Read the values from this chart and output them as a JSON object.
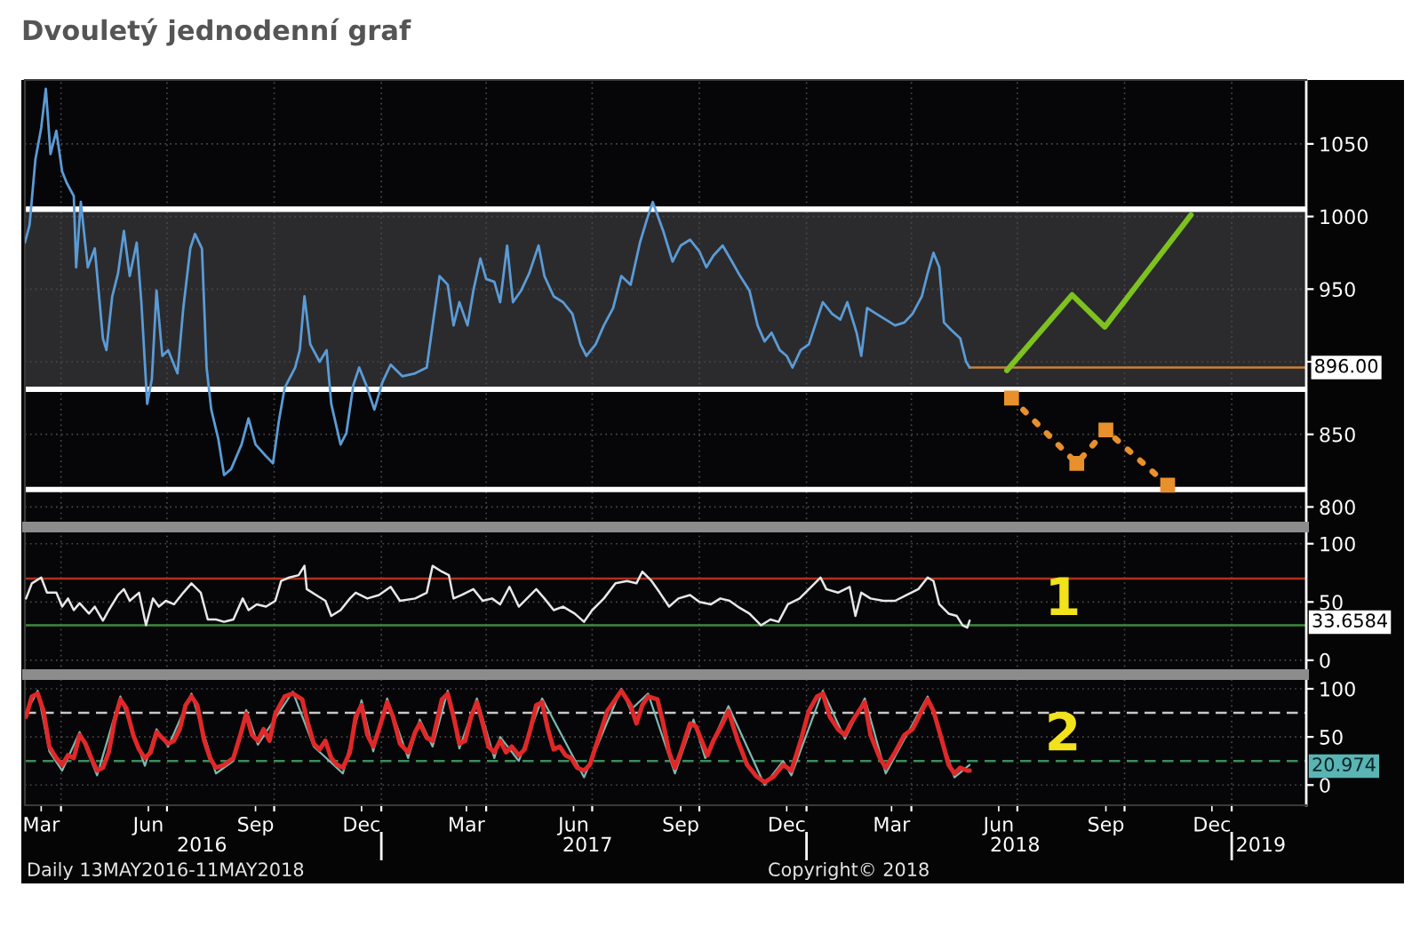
{
  "chart_data": [
    {
      "type": "line",
      "title": "Dvouletý jednodenní graf",
      "x": [
        "2016-03-01",
        "2016-03-05",
        "2016-03-10",
        "2016-03-15",
        "2016-03-19",
        "2016-03-23",
        "2016-03-28",
        "2016-04-02",
        "2016-04-06",
        "2016-04-12",
        "2016-04-14",
        "2016-04-18",
        "2016-04-24",
        "2016-04-30",
        "2016-05-07",
        "2016-05-10",
        "2016-05-15",
        "2016-05-20",
        "2016-05-25",
        "2016-05-30",
        "2016-06-05",
        "2016-06-09",
        "2016-06-14",
        "2016-06-18",
        "2016-06-22",
        "2016-06-27",
        "2016-07-02",
        "2016-07-10",
        "2016-07-15",
        "2016-07-21",
        "2016-07-25",
        "2016-07-31",
        "2016-08-04",
        "2016-08-08",
        "2016-08-14",
        "2016-08-19",
        "2016-08-25",
        "2016-09-03",
        "2016-09-09",
        "2016-09-15",
        "2016-09-24",
        "2016-09-30",
        "2016-10-05",
        "2016-10-10",
        "2016-10-19",
        "2016-10-23",
        "2016-10-27",
        "2016-11-01",
        "2016-11-09",
        "2016-11-15",
        "2016-11-19",
        "2016-11-27",
        "2016-12-02",
        "2016-12-08",
        "2016-12-13",
        "2016-12-19",
        "2016-12-26",
        "2017-01-02",
        "2017-01-09",
        "2017-01-19",
        "2017-01-30",
        "2017-02-09",
        "2017-02-14",
        "2017-02-20",
        "2017-02-27",
        "2017-03-04",
        "2017-03-09",
        "2017-03-16",
        "2017-03-21",
        "2017-03-27",
        "2017-04-01",
        "2017-04-08",
        "2017-04-13",
        "2017-04-19",
        "2017-04-24",
        "2017-05-01",
        "2017-05-08",
        "2017-05-16",
        "2017-05-21",
        "2017-05-29",
        "2017-06-06",
        "2017-06-14",
        "2017-06-21",
        "2017-06-26",
        "2017-07-04",
        "2017-07-11",
        "2017-07-19",
        "2017-07-26",
        "2017-08-03",
        "2017-08-11",
        "2017-08-17",
        "2017-08-22",
        "2017-08-31",
        "2017-09-08",
        "2017-09-15",
        "2017-09-23",
        "2017-10-01",
        "2017-10-07",
        "2017-10-13",
        "2017-10-21",
        "2017-10-29",
        "2017-11-05",
        "2017-11-13",
        "2017-11-20",
        "2017-11-26",
        "2017-12-02",
        "2017-12-09",
        "2017-12-15",
        "2017-12-20",
        "2017-12-27",
        "2018-01-03",
        "2018-01-10",
        "2018-01-15",
        "2018-01-23",
        "2018-01-30",
        "2018-02-05",
        "2018-02-13",
        "2018-02-17",
        "2018-02-22",
        "2018-03-02",
        "2018-03-10",
        "2018-03-18",
        "2018-03-26",
        "2018-04-02",
        "2018-04-10",
        "2018-04-15",
        "2018-04-20",
        "2018-04-25",
        "2018-04-29",
        "2018-05-05",
        "2018-05-13",
        "2018-05-18",
        "2018-05-21"
      ],
      "series": [
        {
          "color": "#5b9bd5",
          "values": [
            982,
            994,
            1039,
            1061,
            1088,
            1043,
            1059,
            1031,
            1023,
            1014,
            965,
            1010,
            965,
            978,
            916,
            908,
            945,
            961,
            990,
            959,
            982,
            941,
            871,
            888,
            949,
            904,
            908,
            892,
            937,
            978,
            988,
            978,
            896,
            867,
            847,
            822,
            826,
            843,
            861,
            843,
            835,
            830,
            859,
            882,
            896,
            908,
            945,
            912,
            900,
            908,
            871,
            843,
            851,
            884,
            896,
            884,
            867,
            886,
            898,
            890,
            892,
            896,
            925,
            959,
            953,
            925,
            941,
            925,
            949,
            971,
            957,
            955,
            941,
            980,
            941,
            949,
            961,
            980,
            959,
            945,
            941,
            933,
            912,
            904,
            912,
            925,
            937,
            959,
            953,
            982,
            998,
            1010,
            990,
            969,
            980,
            984,
            976,
            965,
            973,
            980,
            969,
            959,
            949,
            925,
            914,
            920,
            908,
            904,
            896,
            908,
            912,
            929,
            941,
            933,
            929,
            941,
            920,
            904,
            937,
            933,
            929,
            925,
            927,
            933,
            945,
            961,
            975,
            965,
            927,
            922,
            916,
            900,
            896
          ]
        },
        {
          "type": "line",
          "color": "#7dc21e",
          "x": [
            "2018-06-22",
            "2018-08-17",
            "2018-09-14",
            "2018-11-27"
          ],
          "values": [
            894,
            946,
            924,
            1001
          ]
        },
        {
          "type": "line",
          "color": "#e8902c",
          "x": [
            "2018-06-26",
            "2018-08-21",
            "2018-09-15",
            "2018-11-07"
          ],
          "values": [
            875,
            830,
            853,
            815
          ],
          "marker": "square",
          "line_style": "dotted"
        }
      ],
      "xlim": [
        "2016-03-01",
        "2019-03-06"
      ],
      "xticks": [
        {
          "value": "2016-04-01",
          "label": null
        },
        {
          "value": "2016-07-01",
          "label": null
        },
        {
          "value": "2016-10-01",
          "label": null
        },
        {
          "value": "2017-01-01",
          "label": null
        },
        {
          "value": "2017-04-01",
          "label": null
        },
        {
          "value": "2017-07-01",
          "label": null
        },
        {
          "value": "2017-10-01",
          "label": null
        },
        {
          "value": "2018-01-01",
          "label": null
        },
        {
          "value": "2018-04-01",
          "label": null
        },
        {
          "value": "2018-07-01",
          "label": null
        },
        {
          "value": "2018-10-01",
          "label": null
        },
        {
          "value": "2019-01-01",
          "label": null
        }
      ],
      "ylim": [
        788,
        1094
      ],
      "yticks": [
        800,
        850,
        {
          "value": 900,
          "label": null
        },
        950,
        1000,
        1050
      ],
      "grid": true,
      "tick_labels": "y",
      "bands": [
        {
          "axis": "y",
          "from": 881,
          "to": 1005,
          "color": "#2b2b2e"
        }
      ],
      "ref_lines": [
        {
          "axis": "y",
          "value": 1005,
          "color": "#ffffff"
        },
        {
          "axis": "y",
          "value": 881,
          "color": "#ffffff"
        },
        {
          "axis": "y",
          "value": 812,
          "color": "#ffffff"
        }
      ],
      "annotations": [
        {
          "text": "896.00",
          "x": "2018-05-21",
          "y": 896
        }
      ]
    },
    {
      "type": "line",
      "x": [
        "2016-03-02",
        "2016-03-07",
        "2016-03-15",
        "2016-03-20",
        "2016-03-28",
        "2016-04-02",
        "2016-04-07",
        "2016-04-12",
        "2016-04-17",
        "2016-04-25",
        "2016-04-30",
        "2016-05-07",
        "2016-05-12",
        "2016-05-20",
        "2016-05-25",
        "2016-05-30",
        "2016-06-07",
        "2016-06-13",
        "2016-06-19",
        "2016-06-24",
        "2016-06-30",
        "2016-07-07",
        "2016-07-15",
        "2016-07-22",
        "2016-07-30",
        "2016-08-05",
        "2016-08-12",
        "2016-08-19",
        "2016-08-27",
        "2016-09-04",
        "2016-09-09",
        "2016-09-16",
        "2016-09-24",
        "2016-10-02",
        "2016-10-07",
        "2016-10-14",
        "2016-10-22",
        "2016-10-27",
        "2016-10-29",
        "2016-11-06",
        "2016-11-14",
        "2016-11-19",
        "2016-11-27",
        "2016-12-05",
        "2016-12-10",
        "2016-12-20",
        "2016-12-30",
        "2017-01-09",
        "2017-01-17",
        "2017-01-30",
        "2017-02-09",
        "2017-02-14",
        "2017-02-22",
        "2017-02-28",
        "2017-03-04",
        "2017-03-11",
        "2017-03-21",
        "2017-03-29",
        "2017-04-06",
        "2017-04-13",
        "2017-04-21",
        "2017-04-29",
        "2017-05-06",
        "2017-05-14",
        "2017-05-21",
        "2017-05-29",
        "2017-06-06",
        "2017-06-16",
        "2017-06-24",
        "2017-07-01",
        "2017-07-11",
        "2017-07-21",
        "2017-07-31",
        "2017-08-08",
        "2017-08-13",
        "2017-08-21",
        "2017-08-28",
        "2017-09-05",
        "2017-09-13",
        "2017-09-23",
        "2017-10-01",
        "2017-10-11",
        "2017-10-19",
        "2017-10-27",
        "2017-11-03",
        "2017-11-13",
        "2017-11-23",
        "2017-12-01",
        "2017-12-08",
        "2017-12-16",
        "2017-12-26",
        "2018-01-05",
        "2018-01-13",
        "2018-01-18",
        "2018-01-28",
        "2018-02-07",
        "2018-02-12",
        "2018-02-17",
        "2018-02-25",
        "2018-03-08",
        "2018-03-18",
        "2018-03-28",
        "2018-04-07",
        "2018-04-15",
        "2018-04-20",
        "2018-04-25",
        "2018-05-03",
        "2018-05-10",
        "2018-05-15",
        "2018-05-19",
        "2018-05-21"
      ],
      "series": [
        {
          "color": "#e8e8e8",
          "values": [
            53,
            66,
            71,
            58,
            58,
            46,
            53,
            43,
            49,
            40,
            46,
            34,
            43,
            56,
            61,
            51,
            58,
            30,
            53,
            46,
            51,
            48,
            58,
            66,
            58,
            35,
            35,
            33,
            35,
            53,
            43,
            48,
            46,
            51,
            68,
            71,
            73,
            81,
            61,
            56,
            51,
            38,
            43,
            53,
            58,
            53,
            56,
            63,
            51,
            53,
            58,
            81,
            76,
            73,
            53,
            56,
            61,
            51,
            53,
            48,
            63,
            46,
            53,
            61,
            53,
            43,
            46,
            40,
            33,
            43,
            53,
            66,
            68,
            66,
            76,
            68,
            58,
            46,
            53,
            56,
            50,
            48,
            53,
            51,
            46,
            40,
            30,
            35,
            33,
            48,
            53,
            63,
            71,
            61,
            58,
            63,
            38,
            58,
            53,
            51,
            51,
            56,
            61,
            71,
            68,
            48,
            40,
            38,
            30,
            28,
            34
          ]
        }
      ],
      "xlim": [
        "2016-03-01",
        "2019-03-06"
      ],
      "xticks": [
        {
          "value": "2016-04-01",
          "label": null
        },
        {
          "value": "2016-07-01",
          "label": null
        },
        {
          "value": "2016-10-01",
          "label": null
        },
        {
          "value": "2017-01-01",
          "label": null
        },
        {
          "value": "2017-04-01",
          "label": null
        },
        {
          "value": "2017-07-01",
          "label": null
        },
        {
          "value": "2017-10-01",
          "label": null
        },
        {
          "value": "2018-01-01",
          "label": null
        },
        {
          "value": "2018-04-01",
          "label": null
        },
        {
          "value": "2018-07-01",
          "label": null
        },
        {
          "value": "2018-10-01",
          "label": null
        },
        {
          "value": "2019-01-01",
          "label": null
        }
      ],
      "ylim": [
        -10,
        112
      ],
      "yticks": [
        0,
        50,
        100
      ],
      "grid": true,
      "tick_labels": "y",
      "ref_lines": [
        {
          "axis": "y",
          "value": 70,
          "color": "#b0301e"
        },
        {
          "axis": "y",
          "value": 30,
          "color": "#3c8c3c"
        }
      ],
      "annotations": [
        "1",
        "33.6584"
      ]
    },
    {
      "type": "line",
      "x": [
        "2016-03-02",
        "2016-03-07",
        "2016-03-12",
        "2016-03-17",
        "2016-03-22",
        "2016-03-28",
        "2016-04-02",
        "2016-04-07",
        "2016-04-12",
        "2016-04-17",
        "2016-04-22",
        "2016-04-27",
        "2016-05-02",
        "2016-05-07",
        "2016-05-12",
        "2016-05-17",
        "2016-05-22",
        "2016-05-27",
        "2016-06-02",
        "2016-06-07",
        "2016-06-12",
        "2016-06-17",
        "2016-06-22",
        "2016-06-27",
        "2016-07-02",
        "2016-07-07",
        "2016-07-12",
        "2016-07-17",
        "2016-07-22",
        "2016-07-27",
        "2016-08-02",
        "2016-08-07",
        "2016-08-12",
        "2016-08-19",
        "2016-08-27",
        "2016-09-02",
        "2016-09-07",
        "2016-09-12",
        "2016-09-17",
        "2016-09-22",
        "2016-09-27",
        "2016-10-02",
        "2016-10-10",
        "2016-10-17",
        "2016-10-25",
        "2016-10-30",
        "2016-11-04",
        "2016-11-09",
        "2016-11-14",
        "2016-11-19",
        "2016-11-24",
        "2016-11-29",
        "2016-12-05",
        "2016-12-10",
        "2016-12-15",
        "2016-12-20",
        "2016-12-25",
        "2016-12-30",
        "2017-01-06",
        "2017-01-11",
        "2017-01-17",
        "2017-01-24",
        "2017-01-30",
        "2017-02-03",
        "2017-02-09",
        "2017-02-14",
        "2017-02-22",
        "2017-02-27",
        "2017-03-04",
        "2017-03-09",
        "2017-03-14",
        "2017-03-19",
        "2017-03-24",
        "2017-03-29",
        "2017-04-03",
        "2017-04-08",
        "2017-04-13",
        "2017-04-18",
        "2017-04-23",
        "2017-04-29",
        "2017-05-04",
        "2017-05-09",
        "2017-05-14",
        "2017-05-19",
        "2017-05-24",
        "2017-05-29",
        "2017-06-03",
        "2017-06-08",
        "2017-06-13",
        "2017-06-18",
        "2017-06-24",
        "2017-06-29",
        "2017-07-04",
        "2017-07-09",
        "2017-07-14",
        "2017-07-21",
        "2017-07-26",
        "2017-08-03",
        "2017-08-08",
        "2017-08-13",
        "2017-08-18",
        "2017-08-26",
        "2017-08-31",
        "2017-09-05",
        "2017-09-10",
        "2017-09-15",
        "2017-09-23",
        "2017-09-28",
        "2017-10-03",
        "2017-10-08",
        "2017-10-13",
        "2017-10-21",
        "2017-10-26",
        "2017-11-03",
        "2017-11-11",
        "2017-11-19",
        "2017-11-26",
        "2017-12-04",
        "2017-12-12",
        "2017-12-19",
        "2017-12-27",
        "2018-01-03",
        "2018-01-10",
        "2018-01-15",
        "2018-01-21",
        "2018-01-28",
        "2018-02-03",
        "2018-02-08",
        "2018-02-15",
        "2018-02-20",
        "2018-02-25",
        "2018-03-05",
        "2018-03-10",
        "2018-03-18",
        "2018-03-26",
        "2018-04-02",
        "2018-04-10",
        "2018-04-15",
        "2018-04-20",
        "2018-04-28",
        "2018-05-03",
        "2018-05-08",
        "2018-05-13",
        "2018-05-19",
        "2018-05-21"
      ],
      "series": [
        {
          "color": "#7fb8b0",
          "x": [
            "2016-03-02",
            "2016-03-12",
            "2016-03-22",
            "2016-04-02",
            "2016-04-17",
            "2016-05-02",
            "2016-05-22",
            "2016-06-12",
            "2016-06-22",
            "2016-07-02",
            "2016-07-22",
            "2016-08-12",
            "2016-08-27",
            "2016-09-07",
            "2016-09-17",
            "2016-10-17",
            "2016-11-04",
            "2016-11-29",
            "2016-12-15",
            "2016-12-25",
            "2017-01-06",
            "2017-01-24",
            "2017-02-03",
            "2017-02-14",
            "2017-02-27",
            "2017-03-09",
            "2017-03-24",
            "2017-04-08",
            "2017-04-13",
            "2017-04-29",
            "2017-05-19",
            "2017-06-24",
            "2017-07-26",
            "2017-08-03",
            "2017-08-18",
            "2017-09-10",
            "2017-09-26",
            "2017-10-06",
            "2017-10-26",
            "2017-11-26",
            "2017-12-12",
            "2017-12-19",
            "2018-01-15",
            "2018-02-03",
            "2018-02-20",
            "2018-03-10",
            "2018-04-15",
            "2018-05-08",
            "2018-05-21"
          ],
          "values": [
            75,
            98,
            35,
            15,
            55,
            10,
            92,
            20,
            58,
            40,
            95,
            12,
            25,
            78,
            42,
            97,
            40,
            12,
            88,
            35,
            90,
            28,
            68,
            40,
            98,
            38,
            90,
            28,
            50,
            25,
            90,
            8,
            100,
            78,
            95,
            12,
            68,
            28,
            82,
            0,
            25,
            10,
            98,
            48,
            90,
            12,
            92,
            8,
            21
          ]
        },
        {
          "color": "#e02828",
          "values": [
            71,
            92,
            95,
            77,
            40,
            28,
            21,
            31,
            28,
            52,
            43,
            28,
            15,
            18,
            34,
            67,
            89,
            80,
            52,
            37,
            28,
            34,
            55,
            49,
            43,
            46,
            58,
            83,
            92,
            83,
            46,
            28,
            18,
            21,
            28,
            52,
            74,
            52,
            46,
            58,
            46,
            74,
            92,
            95,
            89,
            64,
            43,
            37,
            46,
            28,
            21,
            18,
            34,
            71,
            83,
            52,
            40,
            58,
            86,
            71,
            43,
            34,
            55,
            64,
            49,
            46,
            89,
            95,
            71,
            43,
            46,
            71,
            86,
            64,
            40,
            34,
            46,
            34,
            40,
            31,
            37,
            58,
            83,
            86,
            58,
            37,
            40,
            31,
            28,
            18,
            15,
            21,
            40,
            58,
            77,
            89,
            98,
            83,
            64,
            83,
            92,
            89,
            64,
            34,
            18,
            34,
            64,
            61,
            46,
            31,
            46,
            64,
            77,
            46,
            21,
            9,
            3,
            9,
            21,
            15,
            46,
            77,
            92,
            95,
            71,
            58,
            52,
            64,
            77,
            86,
            52,
            28,
            18,
            34,
            52,
            58,
            77,
            89,
            77,
            43,
            21,
            12,
            18,
            15,
            15
          ]
        }
      ],
      "xlim": [
        "2016-03-01",
        "2019-03-06"
      ],
      "xticks": [
        {
          "value": "2016-03-15",
          "label": "Mar"
        },
        {
          "value": "2016-04-01",
          "label": null
        },
        {
          "value": "2016-06-15",
          "label": "Jun"
        },
        {
          "value": "2016-07-01",
          "label": null
        },
        {
          "value": "2016-09-15",
          "label": "Sep"
        },
        {
          "value": "2016-10-01",
          "label": null
        },
        {
          "value": "2016-12-15",
          "label": "Dec"
        },
        {
          "value": "2017-01-01",
          "label": null
        },
        {
          "value": "2017-03-15",
          "label": "Mar"
        },
        {
          "value": "2017-04-01",
          "label": null
        },
        {
          "value": "2017-06-15",
          "label": "Jun"
        },
        {
          "value": "2017-07-01",
          "label": null
        },
        {
          "value": "2017-09-15",
          "label": "Sep"
        },
        {
          "value": "2017-10-01",
          "label": null
        },
        {
          "value": "2017-12-15",
          "label": "Dec"
        },
        {
          "value": "2018-01-01",
          "label": null
        },
        {
          "value": "2018-03-15",
          "label": "Mar"
        },
        {
          "value": "2018-04-01",
          "label": null
        },
        {
          "value": "2018-06-15",
          "label": "Jun"
        },
        {
          "value": "2018-07-01",
          "label": null
        },
        {
          "value": "2018-09-15",
          "label": "Sep"
        },
        {
          "value": "2018-10-01",
          "label": null
        },
        {
          "value": "2018-12-15",
          "label": "Dec"
        },
        {
          "value": "2019-01-01",
          "label": null
        }
      ],
      "x2lim": [
        "2016-03-01",
        "2019-03-06"
      ],
      "x2ticks": [
        {
          "value": "2016-07-31",
          "label": "2016"
        },
        {
          "value": "2017-01-01",
          "label": null
        },
        {
          "value": "2017-06-27",
          "label": "2017"
        },
        {
          "value": "2018-01-01",
          "label": null
        },
        {
          "value": "2018-06-29",
          "label": "2018"
        },
        {
          "value": "2019-01-01",
          "label": null
        },
        {
          "value": "2019-01-26",
          "label": "2019"
        }
      ],
      "ylim": [
        -21,
        112
      ],
      "yticks": [
        0,
        50,
        100
      ],
      "grid": true,
      "ref_lines": [
        {
          "axis": "y",
          "value": 75,
          "color": "#c8c8c8",
          "line_style": "dashed"
        },
        {
          "axis": "y",
          "value": 25,
          "color": "#3c8c5a",
          "line_style": "dashed"
        }
      ],
      "annotations": [
        "2",
        "20.974",
        "Daily 13MAY2016-11MAY2018",
        "Copyright© 2018"
      ]
    }
  ]
}
